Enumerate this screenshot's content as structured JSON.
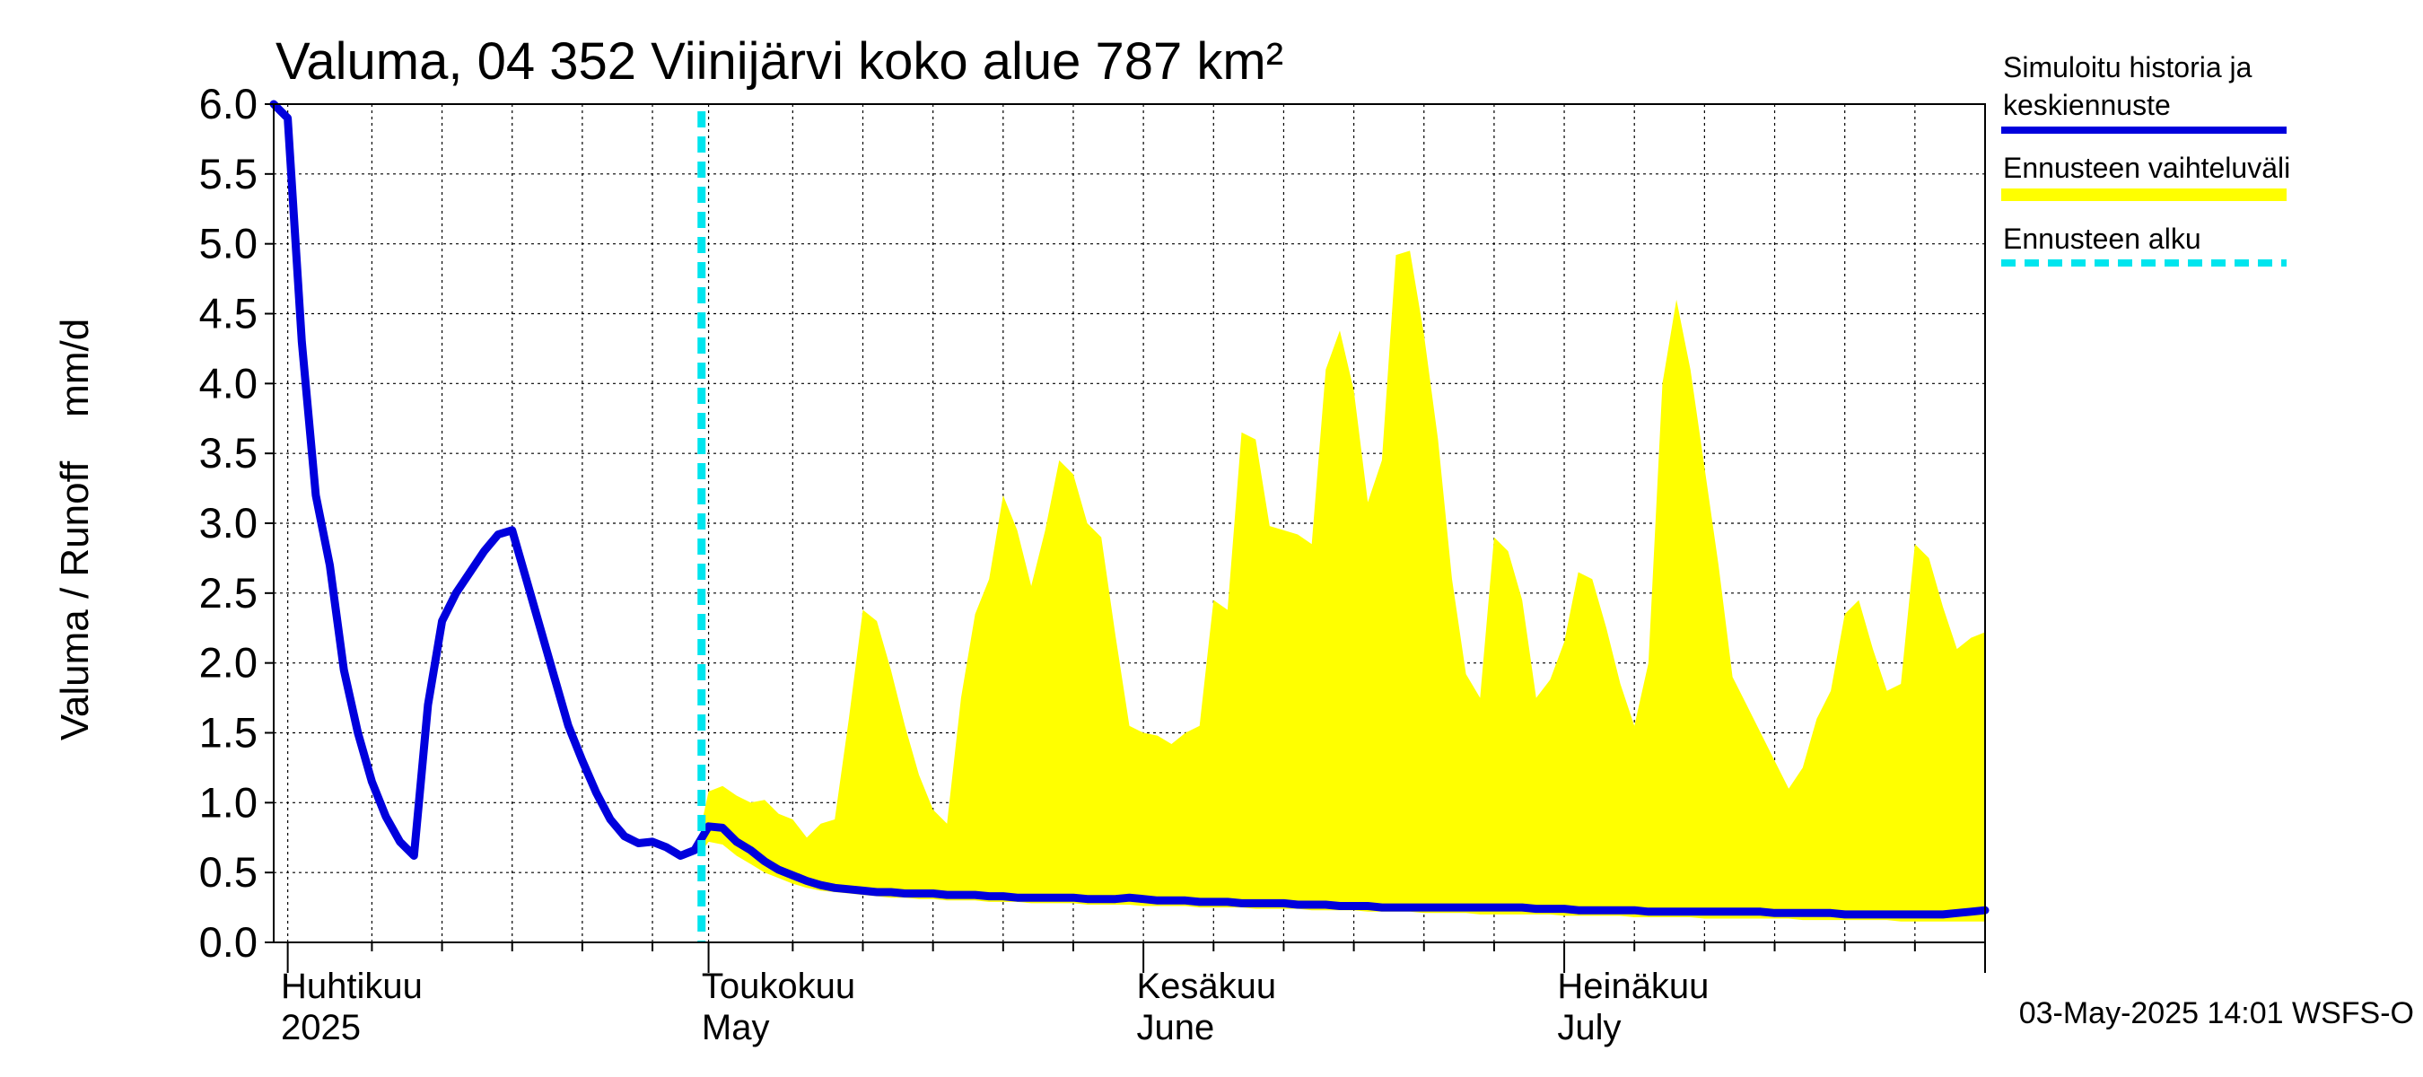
{
  "chart_data": {
    "type": "area",
    "title": "Valuma, 04 352 Viinijärvi koko alue 787 km²",
    "ylabel": "Valuma / Runoff    mm/d",
    "xlabel": "",
    "ylim": [
      0,
      6.0
    ],
    "yticks": [
      "0.0",
      "0.5",
      "1.0",
      "1.5",
      "2.0",
      "2.5",
      "3.0",
      "3.5",
      "4.0",
      "4.5",
      "5.0",
      "5.5",
      "6.0"
    ],
    "x_range_days": [
      0,
      122
    ],
    "x_unit": "days since 2025-03-31",
    "month_labels": [
      {
        "day": 0,
        "fi": "Huhtikuu",
        "en": "2025"
      },
      {
        "day": 30,
        "fi": "Toukokuu",
        "en": "May"
      },
      {
        "day": 61,
        "fi": "Kesäkuu",
        "en": "June"
      },
      {
        "day": 91,
        "fi": "Heinäkuu",
        "en": "July"
      }
    ],
    "month_starts": [
      1,
      31,
      62,
      92,
      122
    ],
    "week_ticks": [
      7,
      12,
      17,
      22,
      27,
      37,
      42,
      47,
      52,
      57,
      67,
      72,
      77,
      82,
      87,
      97,
      102,
      107,
      112,
      117
    ],
    "forecast_start_day": 30.5,
    "series": [
      {
        "name": "Simuloitu historia ja keskiennuste",
        "color": "#0000dd",
        "x": [
          0,
          1,
          2,
          3,
          4,
          5,
          6,
          7,
          8,
          9,
          10,
          11,
          12,
          13,
          14,
          15,
          16,
          17,
          18,
          19,
          20,
          21,
          22,
          23,
          24,
          25,
          26,
          27,
          28,
          29,
          30,
          31,
          32,
          33,
          34,
          35,
          36,
          37,
          38,
          39,
          40,
          41,
          42,
          43,
          44,
          45,
          46,
          47,
          48,
          49,
          50,
          51,
          52,
          53,
          54,
          55,
          56,
          57,
          58,
          59,
          60,
          61,
          62,
          63,
          64,
          65,
          66,
          67,
          68,
          69,
          70,
          71,
          72,
          73,
          74,
          75,
          76,
          77,
          78,
          79,
          80,
          81,
          82,
          83,
          84,
          85,
          86,
          87,
          88,
          89,
          90,
          91,
          92,
          93,
          94,
          95,
          96,
          97,
          98,
          99,
          100,
          101,
          102,
          103,
          104,
          105,
          106,
          107,
          108,
          109,
          110,
          111,
          112,
          113,
          114,
          115,
          116,
          117,
          118,
          119,
          120,
          121,
          122
        ],
        "values": [
          6.0,
          5.9,
          4.3,
          3.2,
          2.7,
          1.95,
          1.5,
          1.15,
          0.9,
          0.72,
          0.62,
          1.7,
          2.3,
          2.5,
          2.65,
          2.8,
          2.92,
          2.95,
          2.6,
          2.25,
          1.9,
          1.55,
          1.3,
          1.07,
          0.88,
          0.76,
          0.71,
          0.72,
          0.68,
          0.62,
          0.66,
          0.83,
          0.82,
          0.72,
          0.66,
          0.58,
          0.52,
          0.48,
          0.44,
          0.41,
          0.39,
          0.38,
          0.37,
          0.36,
          0.36,
          0.35,
          0.35,
          0.35,
          0.34,
          0.34,
          0.34,
          0.33,
          0.33,
          0.32,
          0.32,
          0.32,
          0.32,
          0.32,
          0.31,
          0.31,
          0.31,
          0.32,
          0.31,
          0.3,
          0.3,
          0.3,
          0.29,
          0.29,
          0.29,
          0.28,
          0.28,
          0.28,
          0.28,
          0.27,
          0.27,
          0.27,
          0.26,
          0.26,
          0.26,
          0.25,
          0.25,
          0.25,
          0.25,
          0.25,
          0.25,
          0.25,
          0.25,
          0.25,
          0.25,
          0.25,
          0.24,
          0.24,
          0.24,
          0.23,
          0.23,
          0.23,
          0.23,
          0.23,
          0.22,
          0.22,
          0.22,
          0.22,
          0.22,
          0.22,
          0.22,
          0.22,
          0.22,
          0.21,
          0.21,
          0.21,
          0.21,
          0.21,
          0.2,
          0.2,
          0.2,
          0.2,
          0.2,
          0.2,
          0.2,
          0.2,
          0.21,
          0.22,
          0.23
        ]
      },
      {
        "name": "Ennusteen vaihteluväli",
        "color": "#ffff00",
        "x": [
          30.5,
          31,
          32,
          33,
          34,
          35,
          36,
          37,
          38,
          39,
          40,
          41,
          42,
          43,
          44,
          45,
          46,
          47,
          48,
          49,
          50,
          51,
          52,
          53,
          54,
          55,
          56,
          57,
          58,
          59,
          60,
          61,
          62,
          63,
          64,
          65,
          66,
          67,
          68,
          69,
          70,
          71,
          72,
          73,
          74,
          75,
          76,
          77,
          78,
          79,
          80,
          81,
          82,
          83,
          84,
          85,
          86,
          87,
          88,
          89,
          90,
          91,
          92,
          93,
          94,
          95,
          96,
          97,
          98,
          99,
          100,
          101,
          102,
          103,
          104,
          105,
          106,
          107,
          108,
          109,
          110,
          111,
          112,
          113,
          114,
          115,
          116,
          117,
          118,
          119,
          120,
          121,
          122
        ],
        "upper": [
          0.85,
          1.08,
          1.12,
          1.05,
          1.0,
          1.02,
          0.92,
          0.88,
          0.75,
          0.85,
          0.88,
          1.6,
          2.38,
          2.3,
          1.95,
          1.55,
          1.2,
          0.95,
          0.85,
          1.75,
          2.35,
          2.6,
          3.2,
          2.95,
          2.55,
          2.95,
          3.45,
          3.35,
          3.0,
          2.9,
          2.2,
          1.55,
          1.5,
          1.48,
          1.42,
          1.5,
          1.55,
          2.45,
          2.38,
          3.65,
          3.6,
          2.98,
          2.95,
          2.92,
          2.85,
          4.1,
          4.38,
          3.95,
          3.15,
          3.45,
          4.92,
          4.95,
          4.35,
          3.6,
          2.6,
          1.92,
          1.75,
          2.9,
          2.8,
          2.45,
          1.75,
          1.88,
          2.15,
          2.65,
          2.6,
          2.25,
          1.85,
          1.55,
          2.0,
          4.0,
          4.6,
          4.1,
          3.4,
          2.7,
          1.9,
          1.7,
          1.5,
          1.3,
          1.1,
          1.25,
          1.6,
          1.8,
          2.35,
          2.45,
          2.1,
          1.8,
          1.85,
          2.85,
          2.75,
          2.4,
          2.1,
          2.18,
          2.22
        ],
        "lower": [
          0.65,
          0.72,
          0.7,
          0.62,
          0.56,
          0.5,
          0.46,
          0.42,
          0.39,
          0.37,
          0.36,
          0.35,
          0.34,
          0.33,
          0.32,
          0.32,
          0.31,
          0.31,
          0.3,
          0.3,
          0.3,
          0.29,
          0.29,
          0.29,
          0.28,
          0.28,
          0.28,
          0.28,
          0.27,
          0.27,
          0.27,
          0.27,
          0.26,
          0.26,
          0.26,
          0.26,
          0.25,
          0.25,
          0.25,
          0.25,
          0.24,
          0.24,
          0.24,
          0.24,
          0.23,
          0.23,
          0.23,
          0.23,
          0.22,
          0.22,
          0.22,
          0.22,
          0.21,
          0.21,
          0.21,
          0.21,
          0.2,
          0.2,
          0.2,
          0.2,
          0.2,
          0.2,
          0.19,
          0.19,
          0.19,
          0.19,
          0.19,
          0.18,
          0.18,
          0.18,
          0.18,
          0.18,
          0.17,
          0.17,
          0.17,
          0.17,
          0.17,
          0.17,
          0.17,
          0.16,
          0.16,
          0.16,
          0.16,
          0.16,
          0.16,
          0.16,
          0.15,
          0.15,
          0.15,
          0.15,
          0.15,
          0.15,
          0.15
        ]
      }
    ],
    "legend": {
      "position": "right",
      "items": [
        {
          "label_line1": "Simuloitu historia ja",
          "label_line2": "keskiennuste",
          "color": "#0000dd",
          "style": "solid"
        },
        {
          "label_line1": "Ennusteen vaihteluväli",
          "label_line2": "",
          "color": "#ffff00",
          "style": "solid"
        },
        {
          "label_line1": "Ennusteen alku",
          "label_line2": "",
          "color": "#00e5ee",
          "style": "dashed"
        }
      ]
    },
    "footer": "03-May-2025 14:01 WSFS-O",
    "grid": true
  }
}
